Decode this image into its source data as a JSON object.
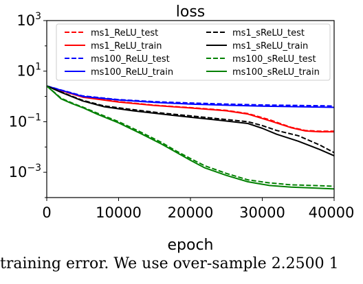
{
  "chart_data": {
    "type": "line",
    "title": "loss",
    "xlabel": "epoch",
    "ylabel": "",
    "xlim": [
      0,
      40000
    ],
    "ylim": [
      0.0001,
      1000
    ],
    "yscale": "log",
    "xticks": [
      0,
      10000,
      20000,
      30000,
      40000
    ],
    "xtick_labels": [
      "0",
      "10000",
      "20000",
      "30000",
      "40000"
    ],
    "ytick_labels": [
      {
        "value": 1000,
        "base": "10",
        "exp": "3"
      },
      {
        "value": 10,
        "base": "10",
        "exp": "1"
      },
      {
        "value": 0.1,
        "base": "10",
        "exp": "−1"
      },
      {
        "value": 0.001,
        "base": "10",
        "exp": "−3"
      }
    ],
    "grid": false,
    "legend_position": "top",
    "series": [
      {
        "name": "ms1_ReLU_test",
        "color": "#ff0000",
        "dash": true,
        "x": [
          0,
          2000,
          5000,
          10000,
          15000,
          20000,
          25000,
          28000,
          31000,
          34000,
          36000,
          38000,
          40000
        ],
        "y": [
          2.6,
          1.7,
          0.95,
          0.62,
          0.45,
          0.36,
          0.28,
          0.21,
          0.12,
          0.06,
          0.045,
          0.042,
          0.042
        ]
      },
      {
        "name": "ms1_ReLU_train",
        "color": "#ff0000",
        "dash": false,
        "x": [
          0,
          2000,
          5000,
          10000,
          15000,
          20000,
          25000,
          28000,
          31000,
          34000,
          36000,
          38000,
          40000
        ],
        "y": [
          2.6,
          1.7,
          0.93,
          0.6,
          0.44,
          0.35,
          0.27,
          0.2,
          0.11,
          0.058,
          0.043,
          0.04,
          0.04
        ]
      },
      {
        "name": "ms100_ReLU_test",
        "color": "#0000ff",
        "dash": true,
        "x": [
          0,
          2000,
          5000,
          10000,
          15000,
          20000,
          25000,
          30000,
          35000,
          40000
        ],
        "y": [
          2.6,
          1.8,
          1.05,
          0.75,
          0.62,
          0.55,
          0.5,
          0.46,
          0.44,
          0.42
        ]
      },
      {
        "name": "ms100_ReLU_train",
        "color": "#0000ff",
        "dash": false,
        "x": [
          0,
          2000,
          5000,
          10000,
          15000,
          20000,
          25000,
          30000,
          35000,
          40000
        ],
        "y": [
          2.6,
          1.75,
          1.0,
          0.72,
          0.58,
          0.5,
          0.45,
          0.41,
          0.39,
          0.37
        ]
      },
      {
        "name": "ms1_sReLU_test",
        "color": "#000000",
        "dash": true,
        "x": [
          0,
          2000,
          5000,
          8000,
          12000,
          16000,
          20000,
          24000,
          28000,
          30000,
          32000,
          35000,
          38000,
          40000
        ],
        "y": [
          2.6,
          1.5,
          0.7,
          0.42,
          0.3,
          0.22,
          0.17,
          0.13,
          0.1,
          0.07,
          0.045,
          0.028,
          0.012,
          0.006
        ]
      },
      {
        "name": "ms1_sReLU_train",
        "color": "#000000",
        "dash": false,
        "x": [
          0,
          2000,
          5000,
          8000,
          12000,
          16000,
          20000,
          24000,
          28000,
          30000,
          32000,
          35000,
          38000,
          40000
        ],
        "y": [
          2.6,
          1.45,
          0.66,
          0.39,
          0.27,
          0.2,
          0.15,
          0.115,
          0.085,
          0.055,
          0.032,
          0.017,
          0.008,
          0.0045
        ]
      },
      {
        "name": "ms100_sReLU_test",
        "color": "#008000",
        "dash": true,
        "x": [
          0,
          1000,
          2000,
          3500,
          5000,
          7000,
          10000,
          13000,
          16000,
          18000,
          20000,
          22000,
          25000,
          28000,
          31000,
          34000,
          37000,
          40000
        ],
        "y": [
          2.6,
          1.5,
          0.85,
          0.55,
          0.38,
          0.22,
          0.1,
          0.04,
          0.015,
          0.007,
          0.0035,
          0.0018,
          0.0009,
          0.0005,
          0.00038,
          0.00032,
          0.0003,
          0.00028
        ]
      },
      {
        "name": "ms100_sReLU_train",
        "color": "#008000",
        "dash": false,
        "x": [
          0,
          1000,
          2000,
          3500,
          5000,
          7000,
          10000,
          13000,
          16000,
          18000,
          20000,
          22000,
          25000,
          28000,
          31000,
          34000,
          37000,
          40000
        ],
        "y": [
          2.6,
          1.45,
          0.8,
          0.52,
          0.36,
          0.2,
          0.09,
          0.035,
          0.013,
          0.0062,
          0.003,
          0.0015,
          0.00075,
          0.00042,
          0.0003,
          0.00026,
          0.00024,
          0.00022
        ]
      }
    ]
  },
  "caption_text": "    training error. We use over-sample 2.2500 1"
}
